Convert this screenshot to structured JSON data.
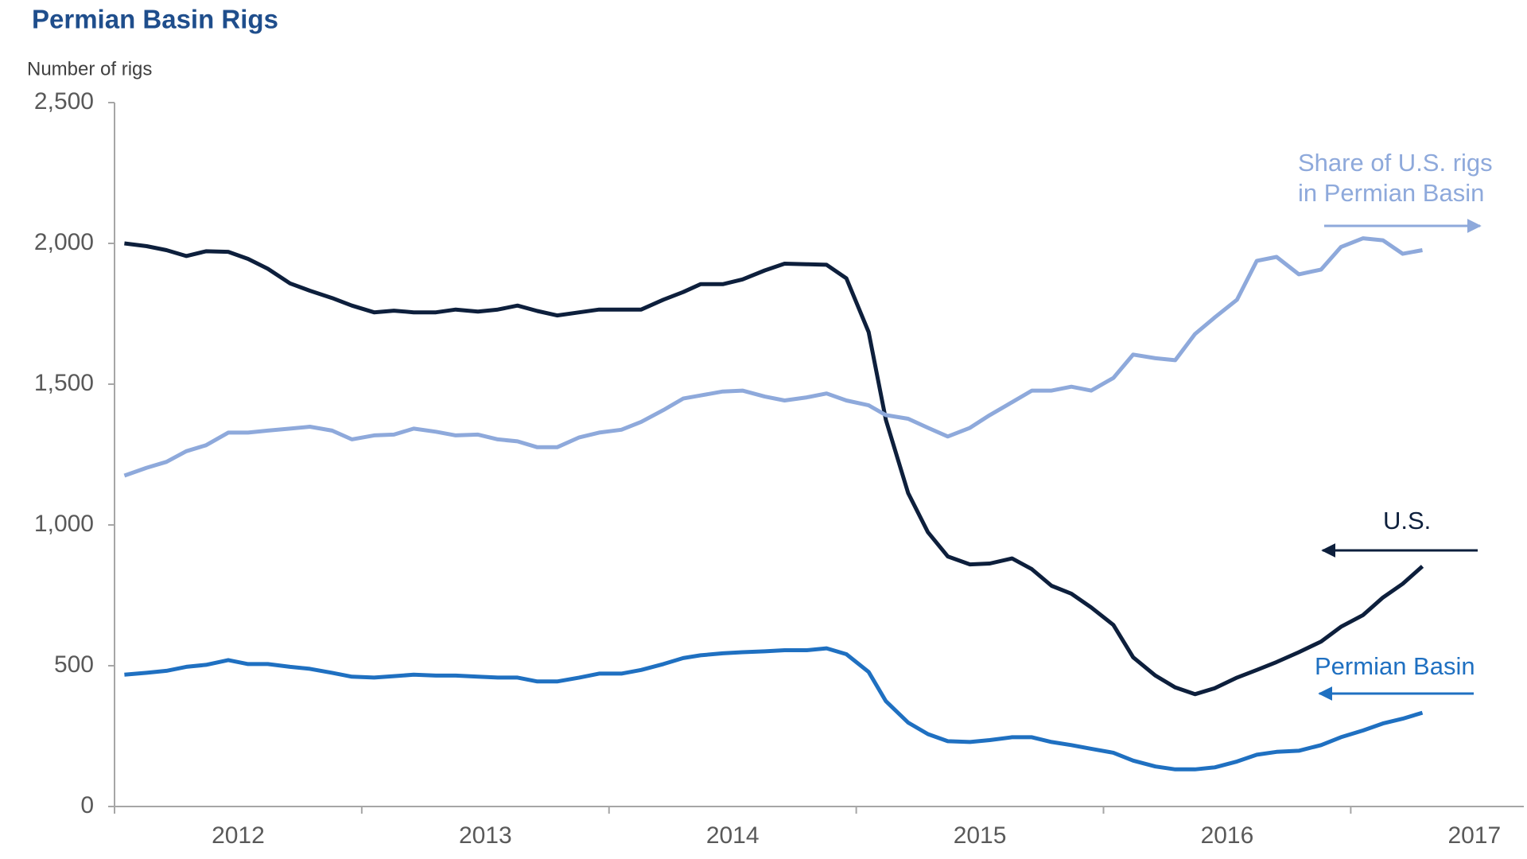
{
  "chart_data": {
    "type": "line",
    "title": "Permian Basin Rigs",
    "y_axis_label": "Number of rigs",
    "xlim": [
      2012,
      2017.7
    ],
    "xticks": [
      2012,
      2013,
      2014,
      2015,
      2016,
      2017
    ],
    "ylim": [
      0,
      2500
    ],
    "yticks": [
      0,
      500,
      {
        "value": 1000,
        "label": "1,000"
      },
      {
        "value": 1500,
        "label": "1,500"
      },
      {
        "value": 2000,
        "label": "2,000"
      },
      {
        "value": 2500,
        "label": "2,500"
      }
    ],
    "grid": false,
    "x": [
      2012.04,
      2012.13,
      2012.21,
      2012.29,
      2012.37,
      2012.46,
      2012.54,
      2012.62,
      2012.71,
      2012.79,
      2012.88,
      2012.96,
      2013.05,
      2013.13,
      2013.21,
      2013.3,
      2013.38,
      2013.47,
      2013.55,
      2013.63,
      2013.71,
      2013.79,
      2013.88,
      2013.96,
      2014.05,
      2014.13,
      2014.22,
      2014.3,
      2014.37,
      2014.46,
      2014.54,
      2014.63,
      2014.71,
      2014.8,
      2014.88,
      2014.96,
      2015.05,
      2015.12,
      2015.21,
      2015.29,
      2015.37,
      2015.46,
      2015.54,
      2015.63,
      2015.71,
      2015.79,
      2015.87,
      2015.95,
      2016.04,
      2016.12,
      2016.21,
      2016.29,
      2016.37,
      2016.45,
      2016.54,
      2016.62,
      2016.7,
      2016.79,
      2016.88,
      2016.96,
      2017.05,
      2017.13,
      2017.21,
      2017.29
    ],
    "series": [
      {
        "name": "U.S.",
        "color": "#0d1f3c",
        "values": [
          2000,
          1990,
          1976,
          1955,
          1972,
          1970,
          1945,
          1910,
          1858,
          1832,
          1806,
          1779,
          1755,
          1761,
          1755,
          1755,
          1765,
          1758,
          1765,
          1779,
          1760,
          1744,
          1755,
          1765,
          1765,
          1765,
          1800,
          1827,
          1855,
          1855,
          1872,
          1904,
          1928,
          1926,
          1924,
          1876,
          1685,
          1373,
          1113,
          974,
          888,
          860,
          863,
          881,
          843,
          784,
          756,
          707,
          645,
          530,
          465,
          423,
          399,
          420,
          458,
          485,
          513,
          548,
          586,
          638,
          680,
          742,
          791,
          853
        ]
      },
      {
        "name": "Permian Basin",
        "color": "#1f70c1",
        "values": [
          468,
          475,
          482,
          496,
          503,
          520,
          506,
          506,
          496,
          489,
          475,
          461,
          458,
          463,
          468,
          465,
          465,
          461,
          458,
          458,
          444,
          444,
          458,
          472,
          472,
          485,
          506,
          527,
          537,
          544,
          548,
          551,
          555,
          555,
          562,
          541,
          478,
          374,
          298,
          257,
          232,
          229,
          236,
          246,
          246,
          229,
          218,
          205,
          191,
          163,
          142,
          132,
          132,
          139,
          160,
          184,
          194,
          198,
          218,
          246,
          270,
          295,
          312,
          333
        ]
      },
      {
        "name": "Share of U.S. rigs in Permian Basin",
        "color": "#8ea9db",
        "values": [
          1175,
          1203,
          1224,
          1262,
          1283,
          1328,
          1328,
          1335,
          1342,
          1349,
          1335,
          1304,
          1318,
          1321,
          1342,
          1331,
          1318,
          1321,
          1304,
          1297,
          1276,
          1276,
          1311,
          1328,
          1338,
          1366,
          1408,
          1449,
          1460,
          1474,
          1477,
          1456,
          1442,
          1453,
          1467,
          1442,
          1425,
          1390,
          1377,
          1345,
          1314,
          1345,
          1390,
          1436,
          1477,
          1477,
          1491,
          1477,
          1522,
          1605,
          1592,
          1585,
          1678,
          1737,
          1800,
          1938,
          1952,
          1890,
          1907,
          1987,
          2018,
          2011,
          1963,
          1976
        ]
      }
    ]
  }
}
